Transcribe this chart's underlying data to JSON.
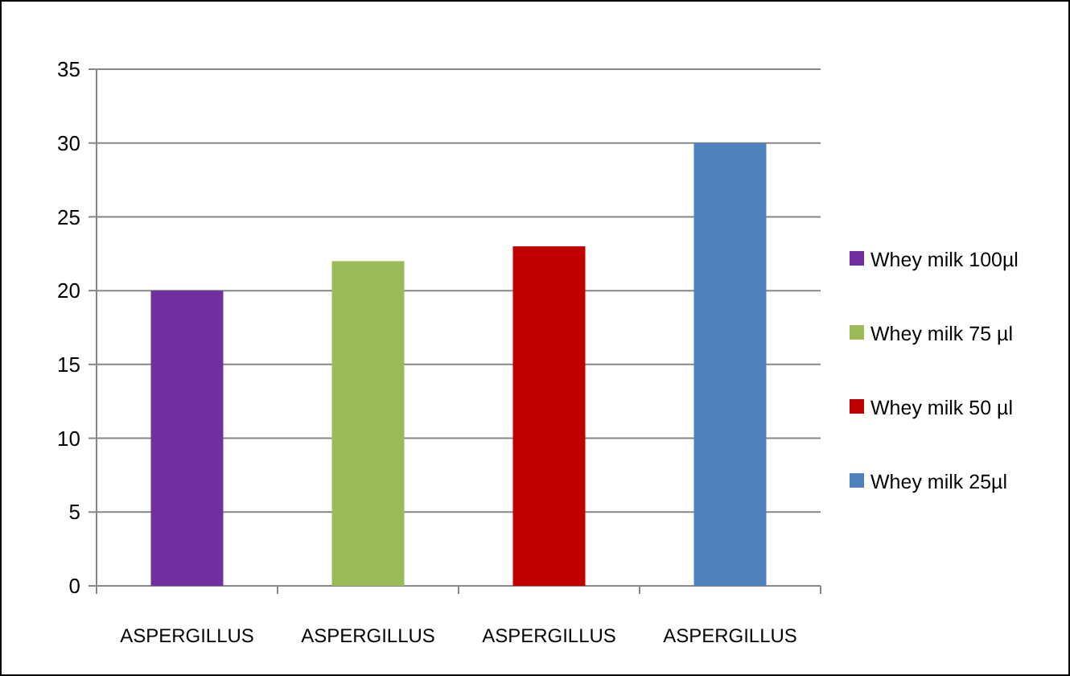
{
  "chart_data": {
    "type": "bar",
    "stacked": true,
    "categories": [
      "ASPERGILLUS",
      "ASPERGILLUS",
      "ASPERGILLUS",
      "ASPERGILLUS"
    ],
    "series": [
      {
        "name": "Whey milk 100µl",
        "color": "#7030a0",
        "values": [
          20,
          null,
          null,
          null
        ]
      },
      {
        "name": "Whey milk 75 µl",
        "color": "#9bbb59",
        "values": [
          null,
          22,
          null,
          null
        ]
      },
      {
        "name": "Whey milk 50 µl",
        "color": "#c00000",
        "values": [
          null,
          null,
          23,
          null
        ]
      },
      {
        "name": "Whey milk 25µl",
        "color": "#4f81bd",
        "values": [
          null,
          null,
          null,
          30
        ]
      }
    ],
    "ylim": [
      0,
      35
    ],
    "yticks": [
      0,
      5,
      10,
      15,
      20,
      25,
      30,
      35
    ],
    "grid": "y",
    "legend": "right"
  }
}
